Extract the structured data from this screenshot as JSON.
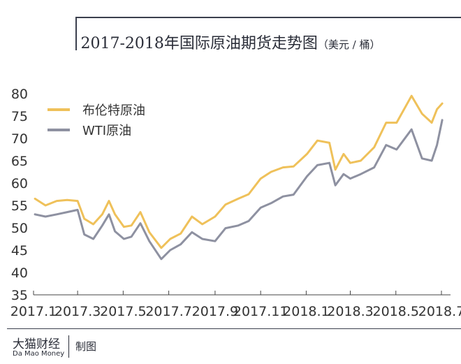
{
  "title": {
    "main": "2017-2018年国际原油期货走势图",
    "unit": "（美元 / 桶）"
  },
  "footer": {
    "brand_cn": "大猫财经",
    "brand_en": "Da Mao Money",
    "credit": "制图"
  },
  "chart_data": {
    "type": "line",
    "title": "2017-2018年国际原油期货走势图",
    "ylabel": "美元 / 桶",
    "ylim": [
      35,
      80
    ],
    "yticks": [
      35,
      40,
      45,
      50,
      55,
      60,
      65,
      70,
      75,
      80
    ],
    "xlim": [
      "2017-01",
      "2018-07"
    ],
    "xticks": [
      "2017.1",
      "2017.3",
      "2017.5",
      "2017.7",
      "2017.9",
      "2017.11",
      "2018.1",
      "2018.3",
      "2018.5",
      "2018.7"
    ],
    "grid": false,
    "legend": "top-left",
    "x": [
      "2017-01-03",
      "2017-01-17",
      "2017-02-01",
      "2017-02-15",
      "2017-03-01",
      "2017-03-10",
      "2017-03-22",
      "2017-04-03",
      "2017-04-12",
      "2017-04-20",
      "2017-05-02",
      "2017-05-12",
      "2017-05-24",
      "2017-06-05",
      "2017-06-21",
      "2017-07-03",
      "2017-07-17",
      "2017-08-01",
      "2017-08-15",
      "2017-09-01",
      "2017-09-15",
      "2017-10-02",
      "2017-10-16",
      "2017-11-01",
      "2017-11-15",
      "2017-12-01",
      "2017-12-15",
      "2018-01-02",
      "2018-01-16",
      "2018-02-01",
      "2018-02-09",
      "2018-02-20",
      "2018-03-01",
      "2018-03-15",
      "2018-04-02",
      "2018-04-18",
      "2018-05-02",
      "2018-05-22",
      "2018-06-05",
      "2018-06-18",
      "2018-06-25",
      "2018-07-02"
    ],
    "series": [
      {
        "name": "布伦特原油",
        "color": "#efc15a",
        "values": [
          56.5,
          55.0,
          56.0,
          56.2,
          56.0,
          52.0,
          50.8,
          53.0,
          56.0,
          53.0,
          50.2,
          50.5,
          53.5,
          49.0,
          45.5,
          47.5,
          48.7,
          52.5,
          50.8,
          52.5,
          55.2,
          56.5,
          57.5,
          61.0,
          62.5,
          63.5,
          63.7,
          66.5,
          69.5,
          69.0,
          63.0,
          66.5,
          64.5,
          65.0,
          68.0,
          73.5,
          73.5,
          79.5,
          75.5,
          73.5,
          76.5,
          77.8
        ]
      },
      {
        "name": "WTI原油",
        "color": "#8e91a1",
        "values": [
          53.0,
          52.5,
          53.0,
          53.5,
          54.0,
          48.5,
          47.5,
          50.5,
          53.0,
          49.2,
          47.5,
          48.0,
          51.0,
          47.0,
          43.0,
          45.0,
          46.3,
          49.0,
          47.5,
          47.0,
          49.9,
          50.5,
          51.5,
          54.5,
          55.5,
          57.0,
          57.4,
          61.5,
          64.0,
          64.5,
          59.5,
          62.0,
          61.0,
          62.0,
          63.5,
          68.5,
          67.5,
          72.0,
          65.5,
          65.0,
          68.5,
          74.1
        ]
      }
    ]
  }
}
